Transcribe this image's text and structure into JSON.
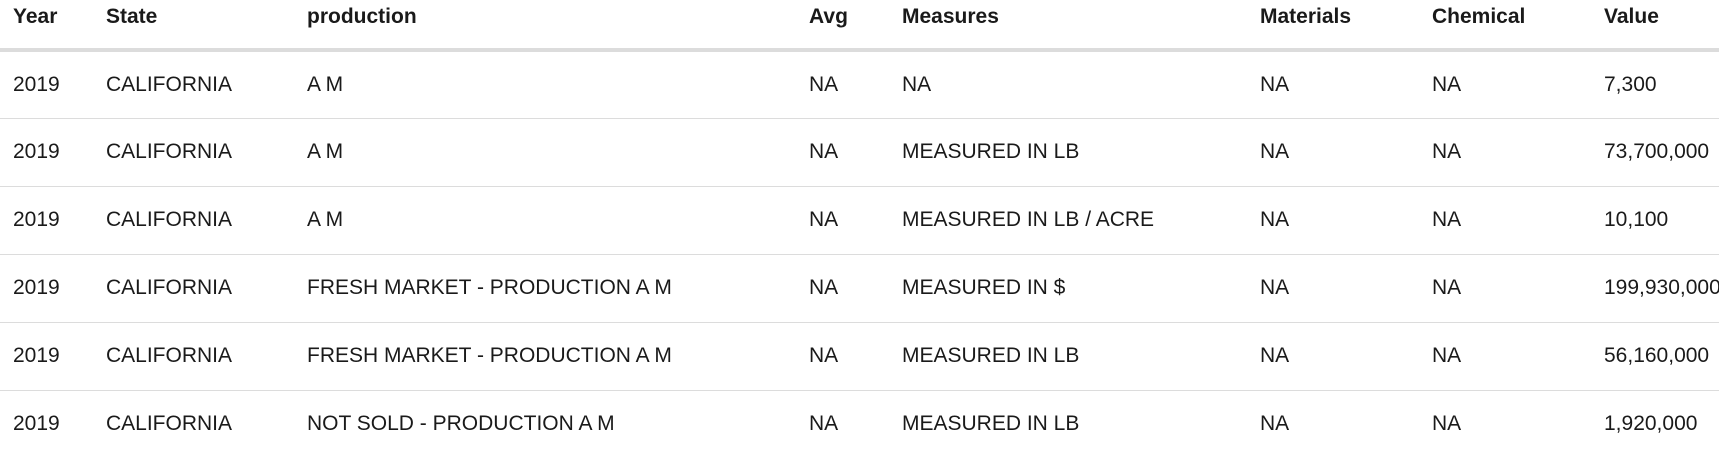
{
  "table": {
    "columns": [
      "Year",
      "State",
      "production",
      "Avg",
      "Measures",
      "Materials",
      "Chemical",
      "Value"
    ],
    "rows": [
      [
        "2019",
        "CALIFORNIA",
        "A M",
        "NA",
        "NA",
        "NA",
        "NA",
        "7,300"
      ],
      [
        "2019",
        "CALIFORNIA",
        "A M",
        "NA",
        "MEASURED IN LB",
        "NA",
        "NA",
        "73,700,000"
      ],
      [
        "2019",
        "CALIFORNIA",
        "A M",
        "NA",
        "MEASURED IN LB / ACRE",
        "NA",
        "NA",
        "10,100"
      ],
      [
        "2019",
        "CALIFORNIA",
        "FRESH MARKET - PRODUCTION A M",
        "NA",
        "MEASURED IN $",
        "NA",
        "NA",
        "199,930,000"
      ],
      [
        "2019",
        "CALIFORNIA",
        "FRESH MARKET - PRODUCTION A M",
        "NA",
        "MEASURED IN LB",
        "NA",
        "NA",
        "56,160,000"
      ],
      [
        "2019",
        "CALIFORNIA",
        "NOT SOLD - PRODUCTION A M",
        "NA",
        "MEASURED IN LB",
        "NA",
        "NA",
        "1,920,000"
      ]
    ]
  }
}
